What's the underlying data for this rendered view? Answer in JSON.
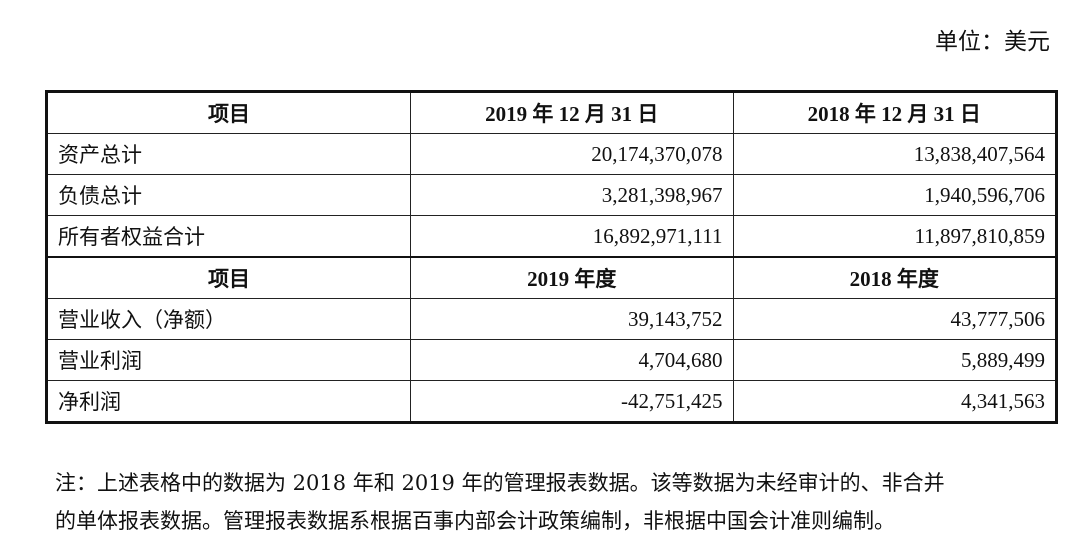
{
  "unit": "单位：美元",
  "table": {
    "header1": [
      "项目",
      "2019 年 12 月 31 日",
      "2018 年 12 月 31 日"
    ],
    "rows1": [
      [
        "资产总计",
        "20,174,370,078",
        "13,838,407,564"
      ],
      [
        "负债总计",
        "3,281,398,967",
        "1,940,596,706"
      ],
      [
        "所有者权益合计",
        "16,892,971,111",
        "11,897,810,859"
      ]
    ],
    "header2": [
      "项目",
      "2019 年度",
      "2018 年度"
    ],
    "rows2": [
      [
        "营业收入（净额）",
        "39,143,752",
        "43,777,506"
      ],
      [
        "营业利润",
        "4,704,680",
        "5,889,499"
      ],
      [
        "净利润",
        "-42,751,425",
        "4,341,563"
      ]
    ]
  },
  "note": [
    "注：上述表格中的数据为 2018 年和 2019 年的管理报表数据。该等数据为未经审计的、非合并",
    "的单体报表数据。管理报表数据系根据百事内部会计政策编制，非根据中国会计准则编制。"
  ]
}
